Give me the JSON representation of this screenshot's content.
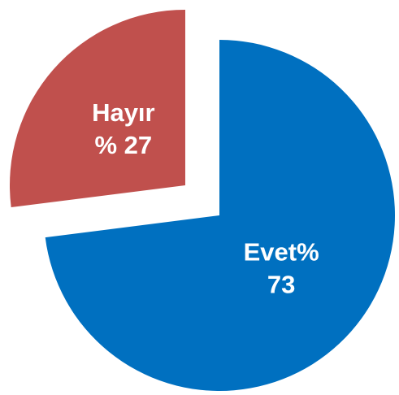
{
  "chart_data": {
    "type": "pie",
    "categories": [
      "Evet%",
      "Hayır"
    ],
    "values": [
      73,
      27
    ],
    "value_labels": [
      "73",
      "% 27"
    ],
    "colors": [
      "#0070c0",
      "#c0504d"
    ],
    "exploded": [
      false,
      true
    ]
  }
}
